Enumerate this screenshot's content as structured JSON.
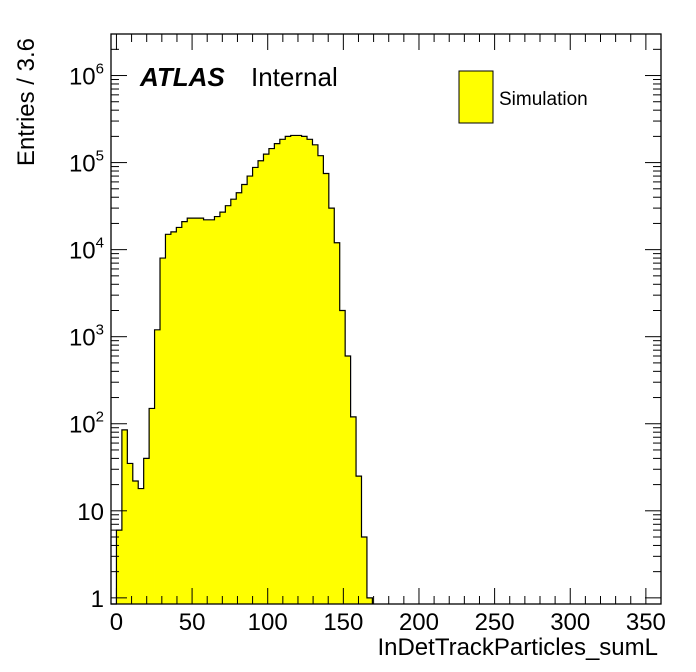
{
  "chart_data": {
    "type": "bar",
    "title": "",
    "xlabel": "InDetTrackParticles_sumL",
    "ylabel": "Entries / 3.6",
    "x_range": [
      -3.6,
      360
    ],
    "ylim": [
      0.85,
      3000000
    ],
    "log_y": true,
    "x_ticks": [
      0,
      50,
      100,
      150,
      200,
      250,
      300,
      350
    ],
    "y_ticks": [
      1,
      10,
      100,
      1000,
      10000,
      100000,
      1000000
    ],
    "y_tick_labels": [
      {
        "base": "1",
        "exp": ""
      },
      {
        "base": "10",
        "exp": ""
      },
      {
        "base": "10",
        "exp": "2"
      },
      {
        "base": "10",
        "exp": "3"
      },
      {
        "base": "10",
        "exp": "4"
      },
      {
        "base": "10",
        "exp": "5"
      },
      {
        "base": "10",
        "exp": "6"
      }
    ],
    "grid": false,
    "legend_position": "top-right",
    "colors": {
      "fill": "#ffff00",
      "line": "#000000"
    },
    "series": [
      {
        "name": "Simulation",
        "bin_width": 3.6,
        "bin_edges_start": -3.6,
        "values": [
          0,
          6,
          85,
          35,
          22,
          18,
          40,
          150,
          1200,
          8000,
          15000,
          16000,
          18000,
          21000,
          23000,
          23000,
          23000,
          22000,
          22000,
          24000,
          27000,
          32000,
          38000,
          45000,
          56000,
          70000,
          88000,
          105000,
          125000,
          145000,
          165000,
          185000,
          200000,
          205000,
          205000,
          200000,
          185000,
          160000,
          120000,
          75000,
          30000,
          12000,
          2000,
          600,
          120,
          25,
          5,
          1
        ]
      }
    ]
  },
  "annotations": {
    "atlas": "ATLAS",
    "internal": "Internal"
  }
}
